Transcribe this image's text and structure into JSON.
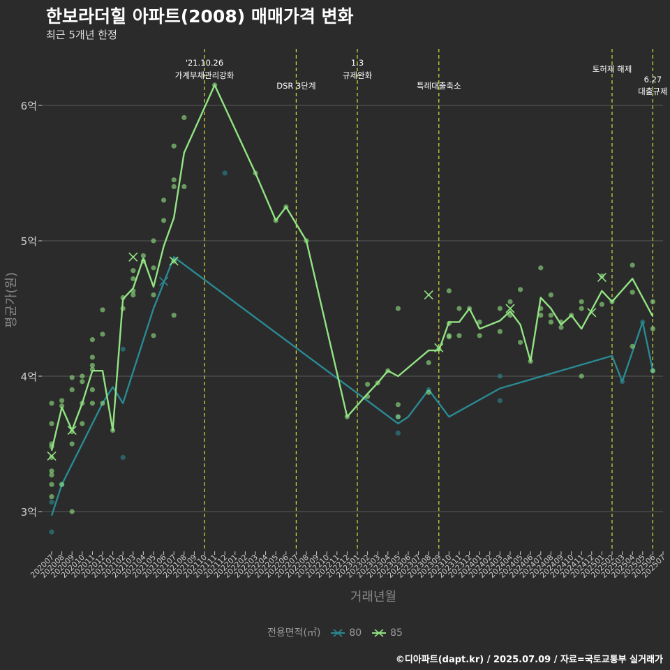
{
  "chart_data": {
    "type": "line",
    "title": "한보라더힐 아파트(2008) 매매가격 변화",
    "subtitle": "최근 5개년 한정",
    "xlabel": "거래년월",
    "ylabel": "평균가(원)",
    "y_unit": "억 원",
    "ylim": [
      2.7,
      6.4
    ],
    "yticks": [
      3,
      4,
      5,
      6
    ],
    "ytick_labels": [
      "3억",
      "4억",
      "5억",
      "6억"
    ],
    "grid": "horizontal",
    "legend_position": "bottom",
    "legend_title": "전용면적(㎡)",
    "categories": [
      "202007",
      "202008",
      "202009",
      "202010",
      "202011",
      "202012",
      "202101",
      "202102",
      "202103",
      "202104",
      "202105",
      "202106",
      "202107",
      "202108",
      "202109",
      "202110",
      "202111",
      "202112",
      "202201",
      "202202",
      "202203",
      "202204",
      "202205",
      "202206",
      "202207",
      "202208",
      "202209",
      "202210",
      "202211",
      "202212",
      "202301",
      "202302",
      "202303",
      "202304",
      "202305",
      "202306",
      "202307",
      "202308",
      "202309",
      "202310",
      "202311",
      "202312",
      "202401",
      "202402",
      "202403",
      "202404",
      "202405",
      "202406",
      "202407",
      "202408",
      "202409",
      "202410",
      "202411",
      "202412",
      "202501",
      "202502",
      "202503",
      "202504",
      "202505",
      "202506",
      "202507"
    ],
    "series": [
      {
        "name": "80",
        "color": "#2a8a93",
        "line": [
          {
            "x": "202007",
            "y": 2.97
          },
          {
            "x": "202008",
            "y": 3.2
          },
          {
            "x": "202010",
            "y": 3.5
          },
          {
            "x": "202012",
            "y": 3.8
          },
          {
            "x": "202101",
            "y": 3.92
          },
          {
            "x": "202102",
            "y": 3.8
          },
          {
            "x": "202105",
            "y": 4.5
          },
          {
            "x": "202107",
            "y": 4.88
          },
          {
            "x": "202305",
            "y": 3.65
          },
          {
            "x": "202306",
            "y": 3.7
          },
          {
            "x": "202308",
            "y": 3.9
          },
          {
            "x": "202310",
            "y": 3.7
          },
          {
            "x": "202403",
            "y": 3.91
          },
          {
            "x": "202502",
            "y": 4.15
          },
          {
            "x": "202503",
            "y": 3.96
          },
          {
            "x": "202505",
            "y": 4.4
          },
          {
            "x": "202506",
            "y": 4.04
          }
        ],
        "points": [
          {
            "x": "202007",
            "y": 2.85
          },
          {
            "x": "202007",
            "y": 3.07
          },
          {
            "x": "202008",
            "y": 3.2
          },
          {
            "x": "202102",
            "y": 3.4
          },
          {
            "x": "202102",
            "y": 4.2
          },
          {
            "x": "202112",
            "y": 5.5
          },
          {
            "x": "202305",
            "y": 3.58
          },
          {
            "x": "202305",
            "y": 3.7
          },
          {
            "x": "202308",
            "y": 3.9
          },
          {
            "x": "202403",
            "y": 3.82
          },
          {
            "x": "202403",
            "y": 4.0
          },
          {
            "x": "202503",
            "y": 3.96
          },
          {
            "x": "202505",
            "y": 4.4
          },
          {
            "x": "202506",
            "y": 4.04
          }
        ],
        "crosses": [
          {
            "x": "202106",
            "y": 4.7
          }
        ]
      },
      {
        "name": "85",
        "color": "#92e483",
        "line": [
          {
            "x": "202007",
            "y": 3.45
          },
          {
            "x": "202008",
            "y": 3.77
          },
          {
            "x": "202009",
            "y": 3.6
          },
          {
            "x": "202010",
            "y": 3.8
          },
          {
            "x": "202011",
            "y": 4.04
          },
          {
            "x": "202012",
            "y": 4.04
          },
          {
            "x": "202101",
            "y": 3.6
          },
          {
            "x": "202102",
            "y": 4.57
          },
          {
            "x": "202103",
            "y": 4.65
          },
          {
            "x": "202104",
            "y": 4.87
          },
          {
            "x": "202105",
            "y": 4.66
          },
          {
            "x": "202106",
            "y": 4.96
          },
          {
            "x": "202107",
            "y": 5.17
          },
          {
            "x": "202108",
            "y": 5.65
          },
          {
            "x": "202111",
            "y": 6.15
          },
          {
            "x": "202203",
            "y": 5.5
          },
          {
            "x": "202205",
            "y": 5.15
          },
          {
            "x": "202206",
            "y": 5.25
          },
          {
            "x": "202208",
            "y": 5.0
          },
          {
            "x": "202212",
            "y": 3.7
          },
          {
            "x": "202302",
            "y": 3.87
          },
          {
            "x": "202303",
            "y": 3.95
          },
          {
            "x": "202304",
            "y": 4.04
          },
          {
            "x": "202305",
            "y": 4.0
          },
          {
            "x": "202308",
            "y": 4.19
          },
          {
            "x": "202309",
            "y": 4.19
          },
          {
            "x": "202310",
            "y": 4.4
          },
          {
            "x": "202311",
            "y": 4.4
          },
          {
            "x": "202312",
            "y": 4.5
          },
          {
            "x": "202401",
            "y": 4.35
          },
          {
            "x": "202403",
            "y": 4.41
          },
          {
            "x": "202404",
            "y": 4.48
          },
          {
            "x": "202405",
            "y": 4.38
          },
          {
            "x": "202406",
            "y": 4.11
          },
          {
            "x": "202407",
            "y": 4.58
          },
          {
            "x": "202408",
            "y": 4.5
          },
          {
            "x": "202409",
            "y": 4.38
          },
          {
            "x": "202410",
            "y": 4.45
          },
          {
            "x": "202411",
            "y": 4.35
          },
          {
            "x": "202501",
            "y": 4.63
          },
          {
            "x": "202502",
            "y": 4.55
          },
          {
            "x": "202504",
            "y": 4.72
          },
          {
            "x": "202506",
            "y": 4.44
          }
        ],
        "points": [
          {
            "x": "202007",
            "y": 3.8
          },
          {
            "x": "202007",
            "y": 3.65
          },
          {
            "x": "202007",
            "y": 3.5
          },
          {
            "x": "202007",
            "y": 3.48
          },
          {
            "x": "202007",
            "y": 3.4
          },
          {
            "x": "202007",
            "y": 3.3
          },
          {
            "x": "202007",
            "y": 3.27
          },
          {
            "x": "202007",
            "y": 3.2
          },
          {
            "x": "202007",
            "y": 3.11
          },
          {
            "x": "202008",
            "y": 3.82
          },
          {
            "x": "202008",
            "y": 3.78
          },
          {
            "x": "202008",
            "y": 3.2
          },
          {
            "x": "202009",
            "y": 3.99
          },
          {
            "x": "202009",
            "y": 3.9
          },
          {
            "x": "202009",
            "y": 3.59
          },
          {
            "x": "202009",
            "y": 3.5
          },
          {
            "x": "202009",
            "y": 3.0
          },
          {
            "x": "202010",
            "y": 4.0
          },
          {
            "x": "202010",
            "y": 3.96
          },
          {
            "x": "202010",
            "y": 3.8
          },
          {
            "x": "202010",
            "y": 3.65
          },
          {
            "x": "202011",
            "y": 4.27
          },
          {
            "x": "202011",
            "y": 4.14
          },
          {
            "x": "202011",
            "y": 4.08
          },
          {
            "x": "202011",
            "y": 4.05
          },
          {
            "x": "202011",
            "y": 3.9
          },
          {
            "x": "202011",
            "y": 3.8
          },
          {
            "x": "202012",
            "y": 4.49
          },
          {
            "x": "202012",
            "y": 4.31
          },
          {
            "x": "202012",
            "y": 3.8
          },
          {
            "x": "202101",
            "y": 3.6
          },
          {
            "x": "202102",
            "y": 4.58
          },
          {
            "x": "202102",
            "y": 4.5
          },
          {
            "x": "202103",
            "y": 4.78
          },
          {
            "x": "202103",
            "y": 4.72
          },
          {
            "x": "202103",
            "y": 4.63
          },
          {
            "x": "202103",
            "y": 4.6
          },
          {
            "x": "202104",
            "y": 4.89
          },
          {
            "x": "202104",
            "y": 4.85
          },
          {
            "x": "202105",
            "y": 5.0
          },
          {
            "x": "202105",
            "y": 4.8
          },
          {
            "x": "202105",
            "y": 4.6
          },
          {
            "x": "202105",
            "y": 4.3
          },
          {
            "x": "202106",
            "y": 5.3
          },
          {
            "x": "202106",
            "y": 5.15
          },
          {
            "x": "202107",
            "y": 5.7
          },
          {
            "x": "202107",
            "y": 5.45
          },
          {
            "x": "202107",
            "y": 5.4
          },
          {
            "x": "202107",
            "y": 4.85
          },
          {
            "x": "202107",
            "y": 4.45
          },
          {
            "x": "202108",
            "y": 5.91
          },
          {
            "x": "202108",
            "y": 5.4
          },
          {
            "x": "202111",
            "y": 6.15
          },
          {
            "x": "202203",
            "y": 5.5
          },
          {
            "x": "202205",
            "y": 5.15
          },
          {
            "x": "202206",
            "y": 5.25
          },
          {
            "x": "202208",
            "y": 5.0
          },
          {
            "x": "202212",
            "y": 3.7
          },
          {
            "x": "202302",
            "y": 3.94
          },
          {
            "x": "202302",
            "y": 3.85
          },
          {
            "x": "202303",
            "y": 3.95
          },
          {
            "x": "202304",
            "y": 4.04
          },
          {
            "x": "202305",
            "y": 4.5
          },
          {
            "x": "202305",
            "y": 3.79
          },
          {
            "x": "202305",
            "y": 3.7
          },
          {
            "x": "202308",
            "y": 4.1
          },
          {
            "x": "202308",
            "y": 3.88
          },
          {
            "x": "202309",
            "y": 4.2
          },
          {
            "x": "202310",
            "y": 4.63
          },
          {
            "x": "202310",
            "y": 4.39
          },
          {
            "x": "202310",
            "y": 4.3
          },
          {
            "x": "202310",
            "y": 4.29
          },
          {
            "x": "202311",
            "y": 4.5
          },
          {
            "x": "202311",
            "y": 4.3
          },
          {
            "x": "202312",
            "y": 4.5
          },
          {
            "x": "202401",
            "y": 4.4
          },
          {
            "x": "202401",
            "y": 4.3
          },
          {
            "x": "202403",
            "y": 4.5
          },
          {
            "x": "202403",
            "y": 4.33
          },
          {
            "x": "202404",
            "y": 4.55
          },
          {
            "x": "202404",
            "y": 4.45
          },
          {
            "x": "202405",
            "y": 4.64
          },
          {
            "x": "202405",
            "y": 4.25
          },
          {
            "x": "202406",
            "y": 4.11
          },
          {
            "x": "202407",
            "y": 4.8
          },
          {
            "x": "202407",
            "y": 4.5
          },
          {
            "x": "202407",
            "y": 4.45
          },
          {
            "x": "202408",
            "y": 4.6
          },
          {
            "x": "202408",
            "y": 4.45
          },
          {
            "x": "202408",
            "y": 4.4
          },
          {
            "x": "202409",
            "y": 4.4
          },
          {
            "x": "202409",
            "y": 4.36
          },
          {
            "x": "202410",
            "y": 4.45
          },
          {
            "x": "202411",
            "y": 4.55
          },
          {
            "x": "202411",
            "y": 4.5
          },
          {
            "x": "202411",
            "y": 4.0
          },
          {
            "x": "202501",
            "y": 4.74
          },
          {
            "x": "202501",
            "y": 4.53
          },
          {
            "x": "202502",
            "y": 4.55
          },
          {
            "x": "202504",
            "y": 4.82
          },
          {
            "x": "202504",
            "y": 4.62
          },
          {
            "x": "202504",
            "y": 4.22
          },
          {
            "x": "202506",
            "y": 4.55
          },
          {
            "x": "202506",
            "y": 4.35
          },
          {
            "x": "202506",
            "y": 4.04
          }
        ],
        "crosses": [
          {
            "x": "202007",
            "y": 3.41
          },
          {
            "x": "202009",
            "y": 3.6
          },
          {
            "x": "202103",
            "y": 4.88
          },
          {
            "x": "202107",
            "y": 4.85
          },
          {
            "x": "202308",
            "y": 4.6
          },
          {
            "x": "202309",
            "y": 4.21
          },
          {
            "x": "202404",
            "y": 4.5
          },
          {
            "x": "202412",
            "y": 4.47
          },
          {
            "x": "202501",
            "y": 4.73
          }
        ]
      }
    ],
    "events": [
      {
        "x": "202110",
        "lines": [
          "'21.10.26",
          "가계부채관리강화"
        ],
        "level": "high"
      },
      {
        "x": "202207",
        "lines": [
          "DSR 3단계"
        ],
        "level": "low"
      },
      {
        "x": "202301",
        "lines": [
          "1.3",
          "규제완화"
        ],
        "level": "high"
      },
      {
        "x": "202309",
        "lines": [
          "특례대출축소"
        ],
        "level": "low"
      },
      {
        "x": "202502",
        "lines": [
          "토허제 해제"
        ],
        "level": "mid"
      },
      {
        "x": "202506",
        "lines": [
          "6.27",
          "대출규제"
        ],
        "level": "low2"
      }
    ],
    "caption": "©디아파트(dapt.kr) / 2025.07.09 / 자료=국토교통부 실거래가"
  },
  "style": {
    "background": "#2b2b2b",
    "grid_color": "#5a5a5a",
    "event_line_color": "#d7df3b",
    "axis_text_color": "#cccccc",
    "axis_title_color": "#888888"
  }
}
